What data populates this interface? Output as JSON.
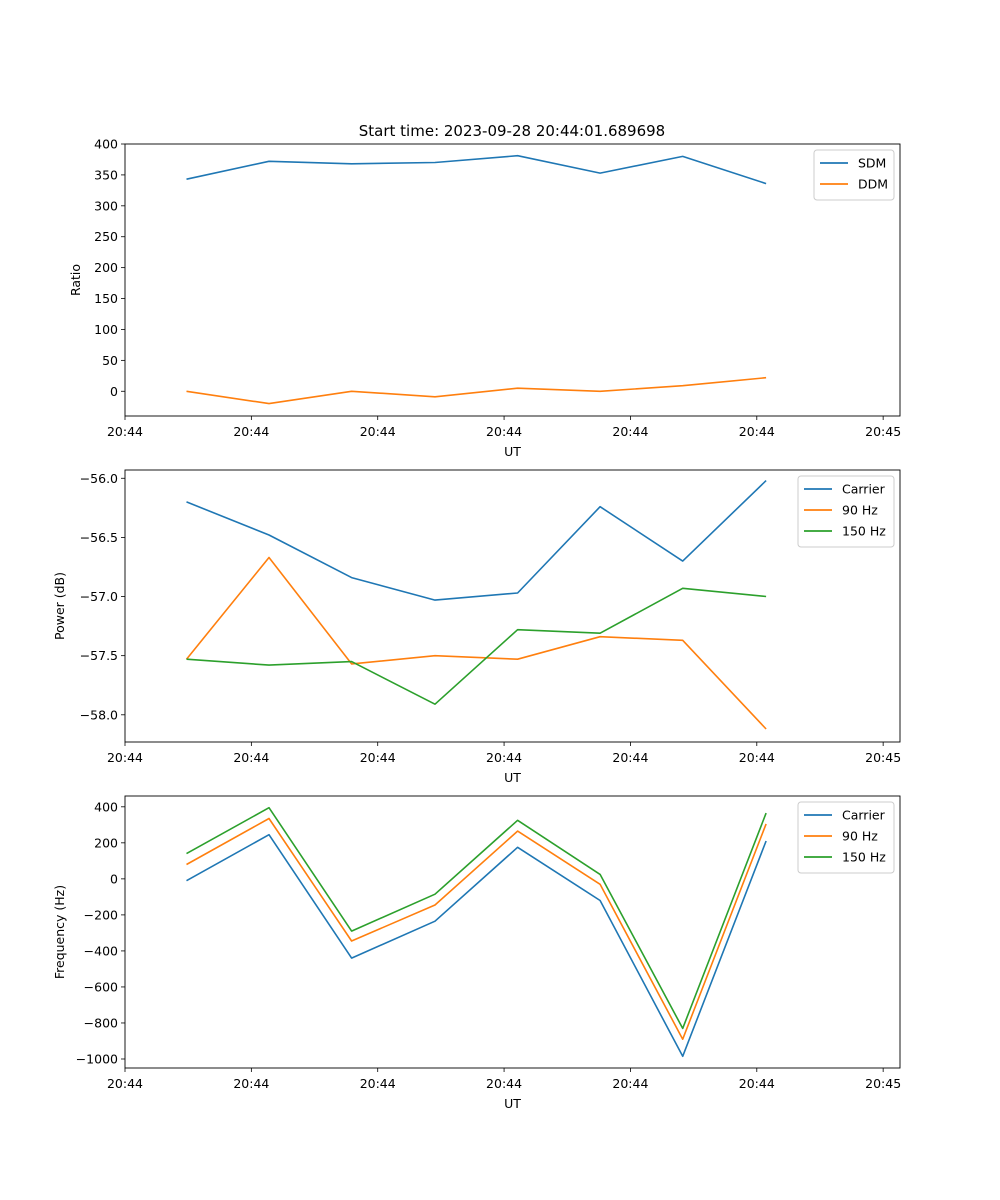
{
  "figure": {
    "title": "Start time: 2023-09-28 20:44:01.689698"
  },
  "chart_data": [
    {
      "type": "line",
      "xlabel": "UT",
      "ylabel": "Ratio",
      "ylim": [
        -40,
        400
      ],
      "yticks": [
        0,
        50,
        100,
        150,
        200,
        250,
        300,
        350,
        400
      ],
      "ytick_labels": [
        "0",
        "50",
        "100",
        "150",
        "200",
        "250",
        "300",
        "350",
        "400"
      ],
      "xlim": [
        0,
        9.2
      ],
      "xticks": [
        0,
        1.5,
        3.0,
        4.5,
        6.0,
        7.5,
        9.0
      ],
      "xtick_labels": [
        "20:44",
        "20:44",
        "20:44",
        "20:44",
        "20:44",
        "20:44",
        "20:45"
      ],
      "x": [
        0.73,
        1.71,
        2.69,
        3.68,
        4.66,
        5.64,
        6.62,
        7.61
      ],
      "legend": "top-right",
      "series": [
        {
          "name": "SDM",
          "color": "#1f77b4",
          "values": [
            343,
            372,
            368,
            370,
            381,
            353,
            380,
            336
          ]
        },
        {
          "name": "DDM",
          "color": "#ff7f0e",
          "values": [
            0,
            -20,
            0,
            -9,
            5,
            0,
            9,
            22
          ]
        }
      ]
    },
    {
      "type": "line",
      "xlabel": "UT",
      "ylabel": "Power (dB)",
      "ylim": [
        -58.23,
        -55.93
      ],
      "yticks": [
        -58.0,
        -57.5,
        -57.0,
        -56.5,
        -56.0
      ],
      "ytick_labels": [
        "−58.0",
        "−57.5",
        "−57.0",
        "−56.5",
        "−56.0"
      ],
      "xlim": [
        0,
        9.2
      ],
      "xticks": [
        0,
        1.5,
        3.0,
        4.5,
        6.0,
        7.5,
        9.0
      ],
      "xtick_labels": [
        "20:44",
        "20:44",
        "20:44",
        "20:44",
        "20:44",
        "20:44",
        "20:45"
      ],
      "x": [
        0.73,
        1.71,
        2.69,
        3.68,
        4.66,
        5.64,
        6.62,
        7.61
      ],
      "legend": "top-right",
      "series": [
        {
          "name": "Carrier",
          "color": "#1f77b4",
          "values": [
            -56.2,
            -56.48,
            -56.84,
            -57.03,
            -56.97,
            -56.24,
            -56.7,
            -56.02
          ]
        },
        {
          "name": "90 Hz",
          "color": "#ff7f0e",
          "values": [
            -57.53,
            -56.67,
            -57.57,
            -57.5,
            -57.53,
            -57.34,
            -57.37,
            -58.12
          ]
        },
        {
          "name": "150 Hz",
          "color": "#2ca02c",
          "values": [
            -57.53,
            -57.58,
            -57.55,
            -57.91,
            -57.28,
            -57.31,
            -56.93,
            -57.0
          ]
        }
      ]
    },
    {
      "type": "line",
      "xlabel": "UT",
      "ylabel": "Frequency (Hz)",
      "ylim": [
        -1050,
        460
      ],
      "yticks": [
        -1000,
        -800,
        -600,
        -400,
        -200,
        0,
        200,
        400
      ],
      "ytick_labels": [
        "−1000",
        "−800",
        "−600",
        "−400",
        "−200",
        "0",
        "200",
        "400"
      ],
      "xlim": [
        0,
        9.2
      ],
      "xticks": [
        0,
        1.5,
        3.0,
        4.5,
        6.0,
        7.5,
        9.0
      ],
      "xtick_labels": [
        "20:44",
        "20:44",
        "20:44",
        "20:44",
        "20:44",
        "20:44",
        "20:45"
      ],
      "x": [
        0.73,
        1.71,
        2.69,
        3.68,
        4.66,
        5.64,
        6.62,
        7.61
      ],
      "legend": "top-right",
      "series": [
        {
          "name": "Carrier",
          "color": "#1f77b4",
          "values": [
            -10,
            245,
            -440,
            -235,
            175,
            -120,
            -985,
            210
          ]
        },
        {
          "name": "90 Hz",
          "color": "#ff7f0e",
          "values": [
            80,
            335,
            -345,
            -145,
            265,
            -30,
            -890,
            305
          ]
        },
        {
          "name": "150 Hz",
          "color": "#2ca02c",
          "values": [
            140,
            395,
            -290,
            -85,
            325,
            25,
            -830,
            365
          ]
        }
      ]
    }
  ]
}
